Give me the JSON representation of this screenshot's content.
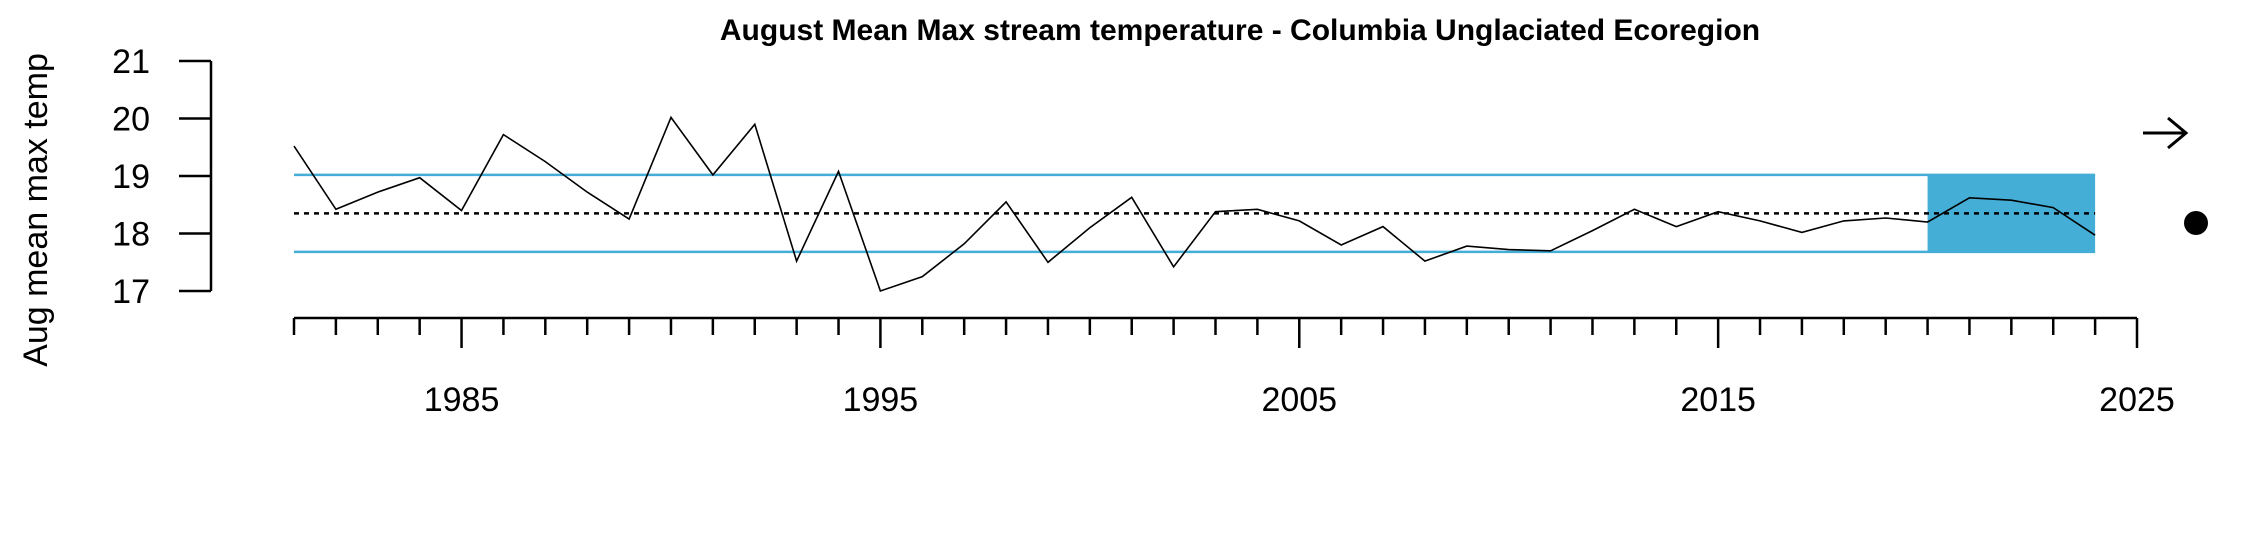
{
  "chart_data": {
    "type": "line",
    "title": "August Mean Max stream temperature - Columbia Unglaciated Ecoregion",
    "xlabel": "",
    "ylabel": "Aug mean max temp",
    "xlim": [
      1981,
      2025
    ],
    "ylim": [
      17,
      21
    ],
    "x_tick_labels": [
      "1985",
      "1995",
      "2005",
      "2015",
      "2025"
    ],
    "y_tick_labels": [
      "17",
      "18",
      "19",
      "20",
      "21"
    ],
    "grid": false,
    "reference_lines": {
      "mean": 18.35,
      "upper_band": 19.02,
      "lower_band": 17.68,
      "band_color": "#45AED6",
      "mean_style": "dotted"
    },
    "highlight_period": {
      "x_start": 2020,
      "x_end": 2024,
      "color": "#45AED6"
    },
    "trend_indicator": {
      "arrow": "right-arrow-icon",
      "status": "dot-icon"
    },
    "series": [
      {
        "x": [
          1981,
          1982,
          1983,
          1984,
          1985,
          1986,
          1987,
          1988,
          1989,
          1990,
          1991,
          1992,
          1993,
          1994,
          1995,
          1996,
          1997,
          1998,
          1999,
          2000,
          2001,
          2002,
          2003,
          2004,
          2005,
          2006,
          2007,
          2008,
          2009,
          2010,
          2011,
          2012,
          2013,
          2014,
          2015,
          2016,
          2017,
          2018,
          2019,
          2020,
          2021,
          2022,
          2023,
          2024
        ],
        "values": [
          19.52,
          18.42,
          18.72,
          18.97,
          18.4,
          19.72,
          19.25,
          18.72,
          18.25,
          20.02,
          19.02,
          19.9,
          17.52,
          19.08,
          17.0,
          17.25,
          17.82,
          18.55,
          17.5,
          18.1,
          18.63,
          17.42,
          18.38,
          18.42,
          18.22,
          17.8,
          18.12,
          17.52,
          17.78,
          17.72,
          17.7,
          18.05,
          18.42,
          18.12,
          18.38,
          18.22,
          18.02,
          18.22,
          18.27,
          18.2,
          18.62,
          18.58,
          18.45,
          17.97
        ]
      }
    ]
  }
}
